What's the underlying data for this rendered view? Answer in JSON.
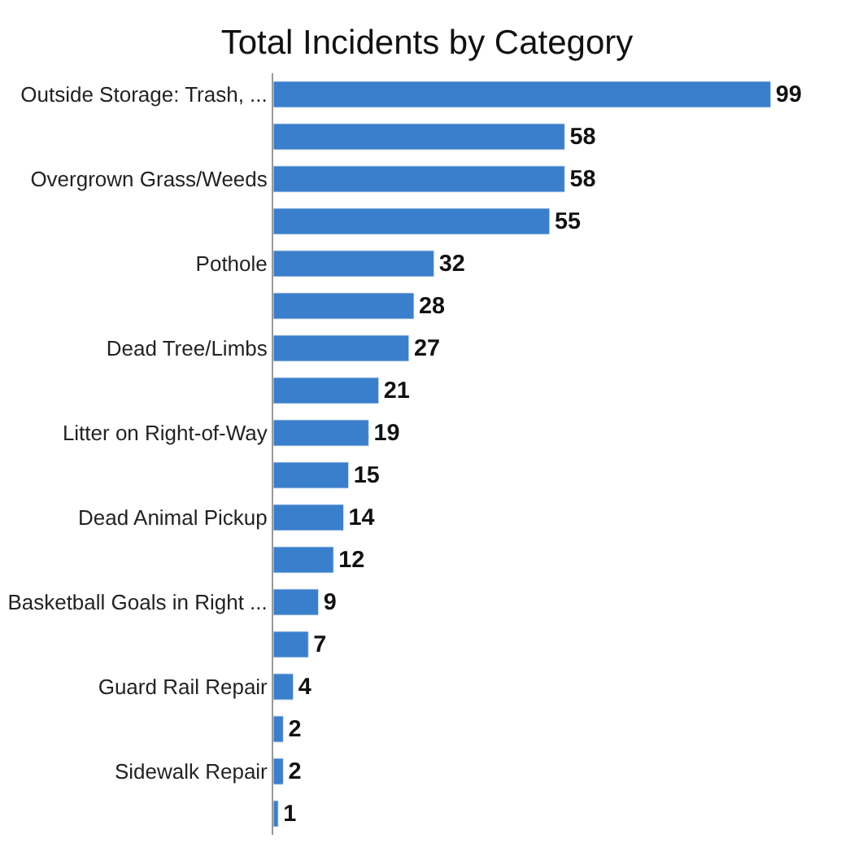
{
  "chart_data": {
    "type": "bar",
    "orientation": "horizontal",
    "title": "Total Incidents by Category",
    "categories": [
      "Outside Storage: Trash, ...",
      null,
      "Overgrown Grass/Weeds",
      null,
      "Pothole",
      null,
      "Dead Tree/Limbs",
      null,
      "Litter on Right-of-Way",
      null,
      "Dead Animal Pickup",
      null,
      "Basketball Goals in Right ...",
      null,
      "Guard Rail Repair",
      null,
      "Sidewalk Repair",
      null
    ],
    "values": [
      99,
      58,
      58,
      55,
      32,
      28,
      27,
      21,
      19,
      15,
      14,
      12,
      9,
      7,
      4,
      2,
      2,
      1
    ],
    "color": "#3a7fcc",
    "data_labels": true
  }
}
